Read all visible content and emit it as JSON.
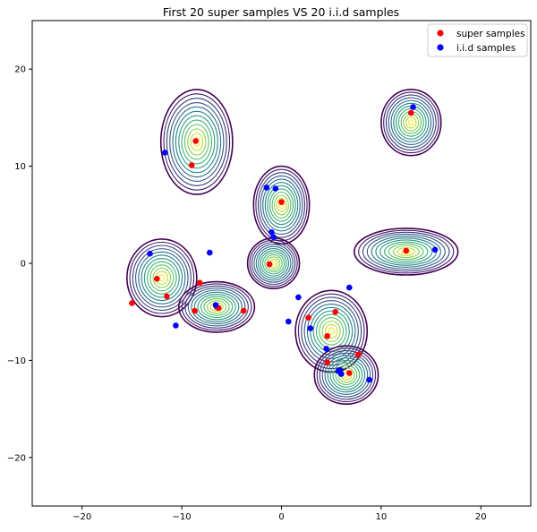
{
  "chart_data": {
    "type": "scatter",
    "title": "First 20 super samples VS 20 i.i.d samples",
    "xlabel": "",
    "ylabel": "",
    "xlim": [
      -25,
      25
    ],
    "ylim": [
      -25,
      25
    ],
    "xticks": [
      -20,
      -10,
      0,
      10,
      20
    ],
    "yticks": [
      -20,
      -10,
      0,
      10,
      20
    ],
    "grid": false,
    "legend_position": "top-right",
    "background": "contour density plot (viridis)",
    "contour_modes": [
      {
        "x": -8.5,
        "y": 12.5,
        "rx": 3.6,
        "ry": 5.4
      },
      {
        "x": 13.0,
        "y": 14.5,
        "rx": 3.0,
        "ry": 3.4
      },
      {
        "x": 0.0,
        "y": 6.0,
        "rx": 2.8,
        "ry": 4.0
      },
      {
        "x": -12.0,
        "y": -1.5,
        "rx": 3.5,
        "ry": 4.0
      },
      {
        "x": -6.5,
        "y": -4.5,
        "rx": 3.8,
        "ry": 2.6
      },
      {
        "x": 12.5,
        "y": 1.2,
        "rx": 5.2,
        "ry": 2.4
      },
      {
        "x": -0.8,
        "y": 0.0,
        "rx": 2.6,
        "ry": 2.6
      },
      {
        "x": 5.0,
        "y": -7.0,
        "rx": 3.6,
        "ry": 4.2
      },
      {
        "x": 6.5,
        "y": -11.5,
        "rx": 3.2,
        "ry": 3.0
      }
    ],
    "series": [
      {
        "name": "super samples",
        "color": "#ff0000",
        "x": [
          -8.6,
          -9.0,
          13.0,
          0.0,
          -1.2,
          -12.5,
          -15.0,
          -11.5,
          -8.2,
          -8.7,
          -6.5,
          -3.8,
          12.5,
          2.7,
          5.4,
          4.6,
          6.8,
          7.7,
          -6.3,
          4.6
        ],
        "y": [
          12.6,
          10.1,
          15.5,
          6.3,
          -0.1,
          -1.6,
          -4.1,
          -3.4,
          -2.0,
          -4.9,
          -4.5,
          -4.9,
          1.3,
          -5.6,
          -5.0,
          -7.5,
          -11.3,
          -9.4,
          -4.6,
          -10.2
        ]
      },
      {
        "name": "i.i.d samples",
        "color": "#0000ff",
        "x": [
          -11.7,
          13.2,
          -1.5,
          -0.6,
          -1.0,
          -0.8,
          -13.2,
          -7.2,
          -6.6,
          -10.6,
          1.7,
          0.7,
          6.8,
          2.9,
          4.5,
          5.7,
          6.0,
          8.8,
          15.4,
          5.9
        ],
        "y": [
          11.4,
          16.1,
          7.8,
          7.7,
          3.2,
          2.7,
          1.0,
          1.1,
          -4.3,
          -6.4,
          -3.5,
          -6.0,
          -2.5,
          -6.7,
          -8.8,
          -11.1,
          -11.4,
          -12.0,
          1.4,
          -11.0
        ]
      }
    ]
  }
}
